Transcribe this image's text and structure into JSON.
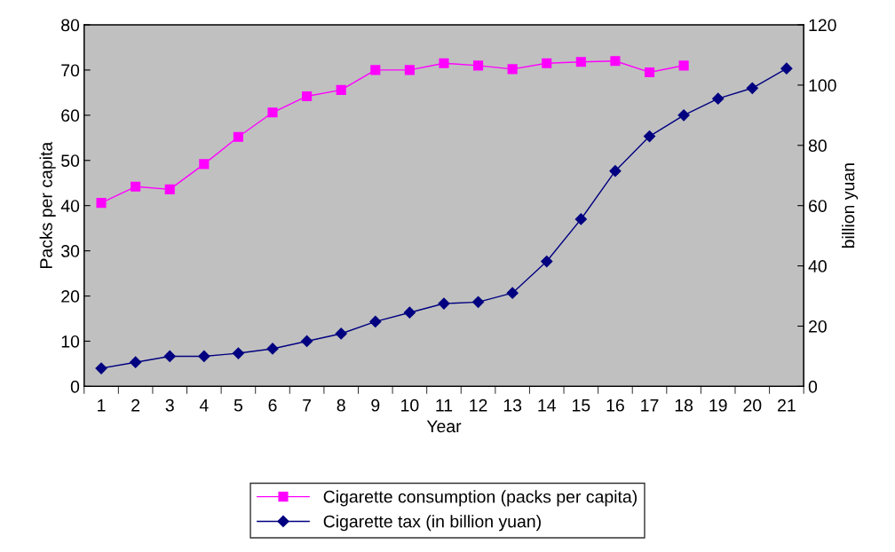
{
  "chart_data": {
    "type": "line",
    "xlabel": "Year",
    "ylabel": "Packs per capita",
    "y2label": "billion yuan",
    "categories": [
      "1",
      "2",
      "3",
      "4",
      "5",
      "6",
      "7",
      "8",
      "9",
      "10",
      "11",
      "12",
      "13",
      "14",
      "15",
      "16",
      "17",
      "18",
      "19",
      "20",
      "21"
    ],
    "series": [
      {
        "name": "Cigarette consumption (packs per capita)",
        "color": "#ff00ff",
        "marker": "square",
        "values": [
          40.6,
          44.2,
          43.6,
          49.2,
          55.2,
          60.6,
          64.2,
          65.6,
          70,
          70,
          71.5,
          71,
          70.2,
          71.5,
          71.8,
          72,
          69.5,
          71,
          null,
          null,
          null
        ]
      },
      {
        "name": "Cigarette tax (in billion yuan)",
        "color": "#000080",
        "marker": "diamond",
        "axis": "y2",
        "values": [
          6,
          8,
          10,
          10,
          11,
          12.5,
          15,
          17.5,
          21.5,
          24.5,
          27.5,
          28,
          31,
          41.5,
          55.5,
          71.5,
          83,
          90,
          95.5,
          99,
          105.5
        ]
      }
    ],
    "ylim": [
      0,
      80
    ],
    "yticks": [
      0,
      10,
      20,
      30,
      40,
      50,
      60,
      70,
      80
    ],
    "y2lim": [
      0,
      120
    ],
    "y2ticks": [
      0,
      20,
      40,
      60,
      80,
      100,
      120
    ],
    "grid": false,
    "legend": "bottom",
    "line_style": "solid"
  }
}
